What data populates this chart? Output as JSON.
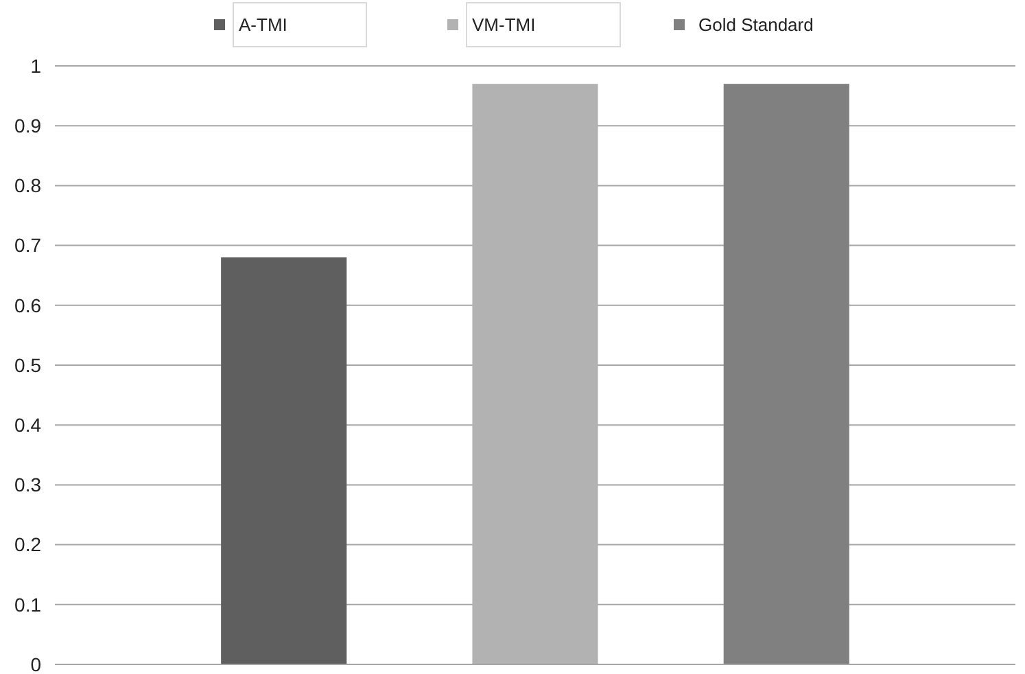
{
  "chart_data": {
    "type": "bar",
    "categories": [
      null
    ],
    "series": [
      {
        "name": "A-TMI",
        "color": "#5f5f5f",
        "values": [
          0.68
        ]
      },
      {
        "name": "VM-TMI",
        "color": "#b2b2b2",
        "values": [
          0.97
        ]
      },
      {
        "name": "Gold Standard",
        "color": "#808080",
        "values": [
          0.97
        ]
      }
    ],
    "ylim": [
      0,
      1
    ],
    "yticks": [
      0,
      0.1,
      0.2,
      0.3,
      0.4,
      0.5,
      0.6,
      0.7,
      0.8,
      0.9,
      1
    ],
    "grid": "y",
    "legend": "top"
  }
}
